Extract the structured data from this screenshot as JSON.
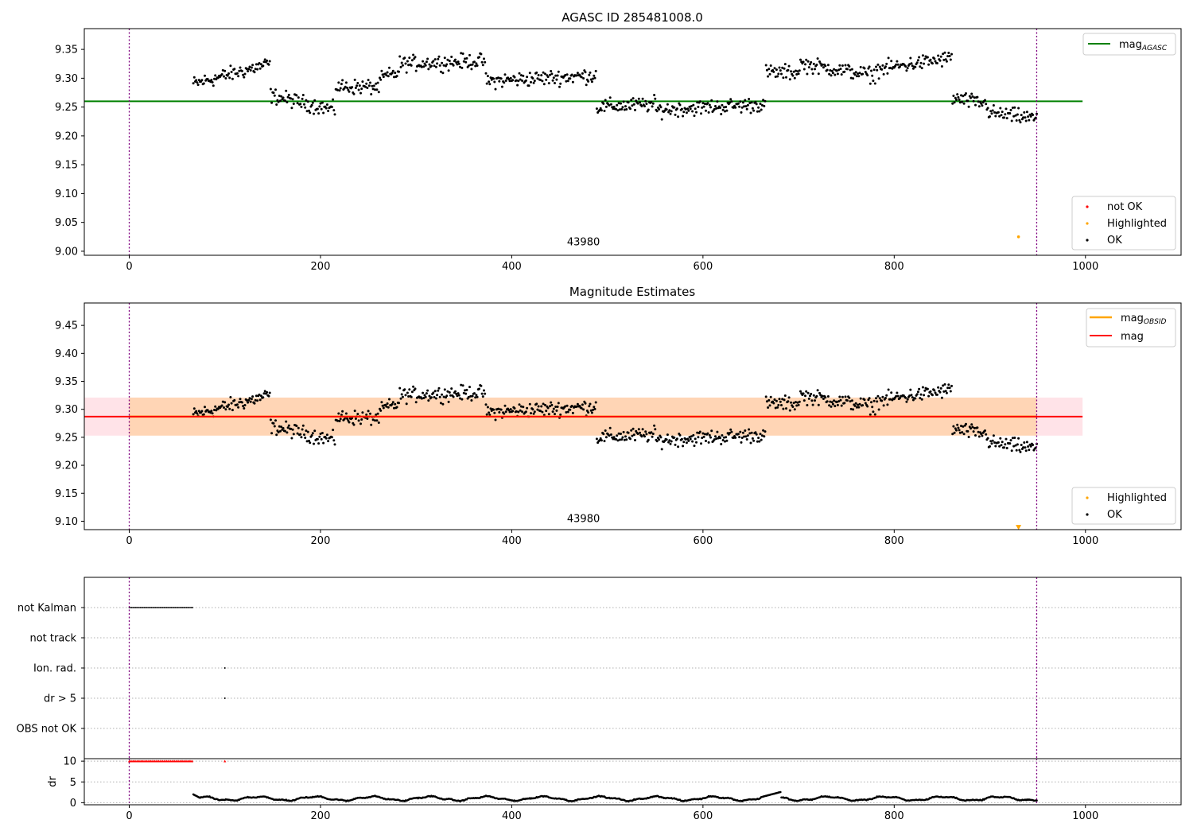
{
  "chart_data": [
    {
      "type": "scatter",
      "title": "AGASC ID 285481008.0",
      "xlim": [
        -47,
        1100
      ],
      "ylim": [
        8.993,
        9.386
      ],
      "xticks": [
        "0",
        "200",
        "400",
        "600",
        "800",
        "1000"
      ],
      "yticks": [
        "9.00",
        "9.05",
        "9.10",
        "9.15",
        "9.20",
        "9.25",
        "9.30",
        "9.35"
      ],
      "vlines": [
        0,
        949
      ],
      "annotation": {
        "text": "43980",
        "x": 475,
        "y": 9.005
      },
      "reference_line": {
        "name": "mag",
        "subscript": "AGASC",
        "y": 9.26,
        "x_range": [
          -47,
          997
        ],
        "color": "#008000"
      },
      "highlighted_point": {
        "x": 930,
        "y": 9.025
      },
      "series": [
        {
          "name": "not OK",
          "color": "#ff0000"
        },
        {
          "name": "Highlighted",
          "color": "#ffa500"
        },
        {
          "name": "OK",
          "color": "#000000"
        }
      ],
      "ok_segments": [
        {
          "x": [
            67,
            147
          ],
          "y": [
            9.29,
            9.325
          ]
        },
        {
          "x": [
            148,
            215
          ],
          "y": [
            9.27,
            9.245
          ]
        },
        {
          "x": [
            216,
            262
          ],
          "y": [
            9.285,
            9.285
          ]
        },
        {
          "x": [
            263,
            282
          ],
          "y": [
            9.3,
            9.31
          ]
        },
        {
          "x": [
            283,
            372
          ],
          "y": [
            9.325,
            9.33
          ]
        },
        {
          "x": [
            373,
            488
          ],
          "y": [
            9.295,
            9.305
          ]
        },
        {
          "x": [
            489,
            550
          ],
          "y": [
            9.25,
            9.255
          ]
        },
        {
          "x": [
            551,
            665
          ],
          "y": [
            9.245,
            9.255
          ]
        },
        {
          "x": [
            666,
            700
          ],
          "y": [
            9.31,
            9.31
          ]
        },
        {
          "x": [
            701,
            780
          ],
          "y": [
            9.325,
            9.305
          ]
        },
        {
          "x": [
            781,
            860
          ],
          "y": [
            9.315,
            9.335
          ]
        },
        {
          "x": [
            861,
            898
          ],
          "y": [
            9.265,
            9.255
          ]
        },
        {
          "x": [
            899,
            949
          ],
          "y": [
            9.24,
            9.23
          ]
        }
      ],
      "noise": 0.009
    },
    {
      "type": "scatter",
      "title": "Magnitude Estimates",
      "xlim": [
        -47,
        1100
      ],
      "ylim": [
        9.085,
        9.49
      ],
      "xticks": [
        "0",
        "200",
        "400",
        "600",
        "800",
        "1000"
      ],
      "yticks": [
        "9.10",
        "9.15",
        "9.20",
        "9.25",
        "9.30",
        "9.35",
        "9.40",
        "9.45"
      ],
      "vlines": [
        0,
        949
      ],
      "annotation": {
        "text": "43980",
        "x": 475,
        "y": 9.1
      },
      "mag_line": {
        "name": "mag",
        "y": 9.287,
        "color": "#ff0000"
      },
      "mag_band": {
        "y_low": 9.253,
        "y_high": 9.321,
        "x_range": [
          -47,
          997
        ],
        "color": "#ffc0cb"
      },
      "mag_obsid": {
        "name": "mag",
        "subscript": "OBSID",
        "y": 9.287,
        "y_low": 9.253,
        "y_high": 9.321,
        "x_range": [
          0,
          949
        ],
        "color": "#ffa500"
      },
      "highlighted_marker": {
        "x": 930,
        "y": 9.089
      },
      "series": [
        {
          "name": "Highlighted",
          "color": "#ffa500"
        },
        {
          "name": "OK",
          "color": "#000000"
        }
      ],
      "noise": 0.009
    },
    {
      "type": "scatter",
      "title": "",
      "xlim": [
        -47,
        1100
      ],
      "categories": [
        "not Kalman",
        "not track",
        "Ion. rad.",
        "dr > 5",
        "OBS not OK"
      ],
      "flags": {
        "not Kalman": {
          "x_range": [
            0,
            67
          ]
        },
        "not track": {},
        "Ion. rad.": {
          "x": [
            100
          ]
        },
        "dr > 5": {
          "x": [
            100
          ]
        },
        "OBS not OK": {}
      },
      "dr_panel": {
        "ylabel": "dr",
        "ylim": [
          -0.5,
          10.6
        ],
        "yticks": [
          "0",
          "5",
          "10"
        ],
        "clipped_value": 10,
        "clipped_x_range": [
          0,
          67
        ],
        "clipped_extra_x": [
          100
        ],
        "baseline": 1.0,
        "peak": 2.6,
        "x_range": [
          67,
          949
        ]
      },
      "xticks": [
        "0",
        "200",
        "400",
        "600",
        "800",
        "1000"
      ],
      "vlines": [
        0,
        949
      ]
    }
  ]
}
